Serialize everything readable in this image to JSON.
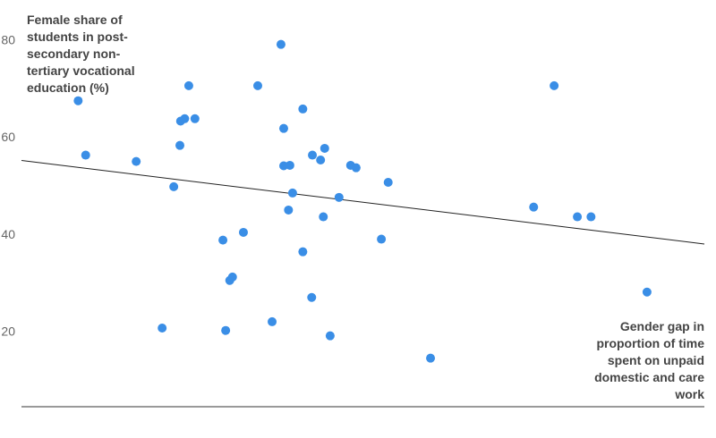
{
  "chart_data": {
    "type": "scatter",
    "y_label": "Female share of students in post-secondary non-tertiary vocational education (%)",
    "x_label": "Gender gap in proportion of time spent on unpaid domestic and care work",
    "color": "#3a8ee6",
    "xlim": [
      0,
      100
    ],
    "ylim": [
      4.7,
      86.6
    ],
    "yticks": [
      20,
      40,
      60,
      80
    ],
    "grid": false,
    "x": [
      8.3,
      9.4,
      16.8,
      22.3,
      20.6,
      24.5,
      23.2,
      23.3,
      23.9,
      25.4,
      29.5,
      29.9,
      30.5,
      30.9,
      32.5,
      34.6,
      36.7,
      38.0,
      38.4,
      38.4,
      39.3,
      39.1,
      39.7,
      41.2,
      41.2,
      42.5,
      42.6,
      43.8,
      44.4,
      44.2,
      45.2,
      46.5,
      48.2,
      49.0,
      52.7,
      53.7,
      59.9,
      75.0,
      78.0,
      81.4,
      83.4,
      91.6
    ],
    "values": [
      67.7,
      56.5,
      55.2,
      50.0,
      20.9,
      70.8,
      58.5,
      63.5,
      64.0,
      64.0,
      39.0,
      20.4,
      30.7,
      31.4,
      40.6,
      70.8,
      22.2,
      79.3,
      62.0,
      54.3,
      54.4,
      45.2,
      48.7,
      66.0,
      36.6,
      27.2,
      56.5,
      55.5,
      57.9,
      43.8,
      19.3,
      47.8,
      54.4,
      53.9,
      39.2,
      50.9,
      14.7,
      45.8,
      70.8,
      43.8,
      43.8,
      28.3
    ],
    "trendline": {
      "x": [
        0,
        100
      ],
      "y": [
        55.4,
        38.2
      ]
    }
  }
}
